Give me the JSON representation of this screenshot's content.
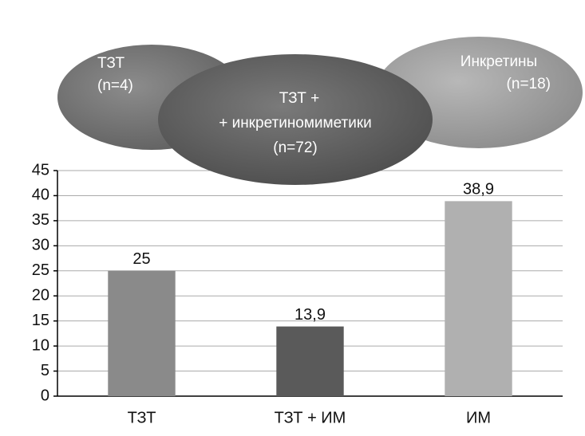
{
  "chart_data": {
    "type": "bar",
    "annotations": [
      {
        "lines": [
          "ТЗТ",
          "(n=4)"
        ]
      },
      {
        "lines": [
          "ТЗТ +",
          "+ инкретиномиметики",
          "(n=72)"
        ]
      },
      {
        "lines": [
          "Инкретины",
          "(n=18)"
        ]
      }
    ],
    "categories": [
      "ТЗТ",
      "ТЗТ + ИМ",
      "ИМ"
    ],
    "values": [
      25,
      13.9,
      38.9
    ],
    "value_labels": [
      "25",
      "13,9",
      "38,9"
    ],
    "colors": [
      "#8a8a8a",
      "#5a5a5a",
      "#b0b0b0"
    ],
    "ylim": [
      0,
      45
    ],
    "yticks": [
      0,
      5,
      10,
      15,
      20,
      25,
      30,
      35,
      40,
      45
    ],
    "grid": true
  }
}
